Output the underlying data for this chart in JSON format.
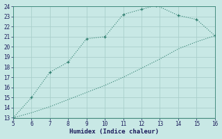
{
  "xlabel": "Humidex (Indice chaleur)",
  "ylabel": "",
  "line1_x": [
    5,
    6,
    7,
    8,
    9,
    10,
    11,
    12,
    12.8,
    14,
    15,
    16
  ],
  "line1_y": [
    13,
    15,
    17.5,
    18.5,
    20.8,
    21,
    23.2,
    23.7,
    24.1,
    23.1,
    22.7,
    21.1
  ],
  "line2_x": [
    5,
    6,
    7,
    8,
    9,
    10,
    11,
    12,
    13,
    14,
    15,
    16
  ],
  "line2_y": [
    13,
    13.5,
    14.1,
    14.8,
    15.5,
    16.2,
    17.0,
    17.9,
    18.8,
    19.8,
    20.5,
    21.1
  ],
  "line_color": "#2e7d6e",
  "bg_color": "#c8e8e5",
  "grid_color": "#aacfcb",
  "xlim": [
    5,
    16
  ],
  "ylim": [
    13,
    24
  ],
  "xticks": [
    5,
    6,
    7,
    8,
    9,
    10,
    11,
    12,
    13,
    14,
    15,
    16
  ],
  "yticks": [
    13,
    14,
    15,
    16,
    17,
    18,
    19,
    20,
    21,
    22,
    23,
    24
  ]
}
